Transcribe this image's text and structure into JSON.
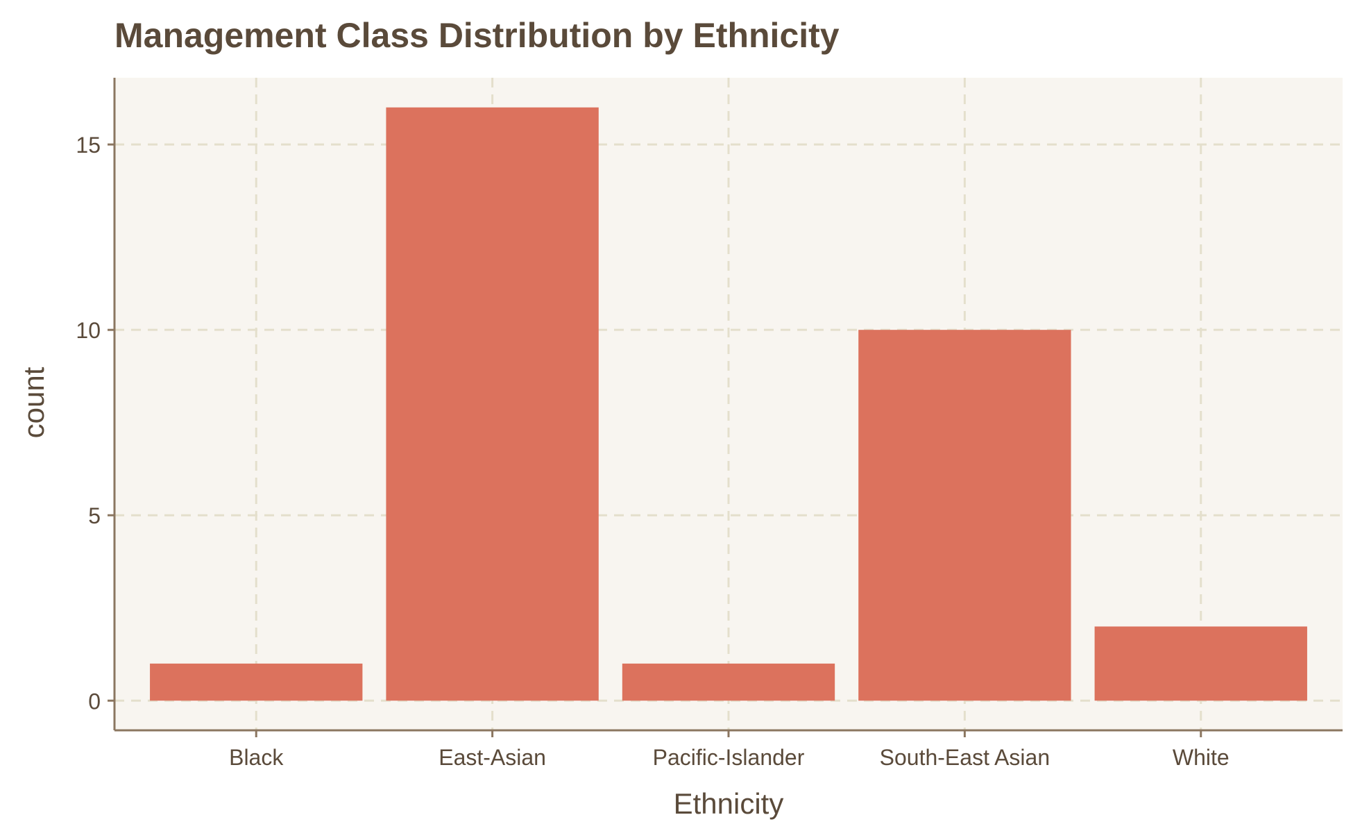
{
  "chart_data": {
    "type": "bar",
    "title": "Management Class Distribution by Ethnicity",
    "xlabel": "Ethnicity",
    "ylabel": "count",
    "categories": [
      "Black",
      "East-Asian",
      "Pacific-Islander",
      "South-East Asian",
      "White"
    ],
    "values": [
      1,
      16,
      1,
      10,
      2
    ],
    "ylim": [
      -0.8,
      16.8
    ],
    "yticks": [
      0,
      5,
      10,
      15
    ],
    "ytick_labels": [
      "0",
      "5",
      "10",
      "15"
    ],
    "grid": true,
    "legend": false
  },
  "colors": {
    "bar": "#dc725d",
    "panel_background": "#f8f5f0",
    "grid": "#e4dfcc",
    "axis": "#8b7660",
    "text": "#5a4a3a"
  }
}
